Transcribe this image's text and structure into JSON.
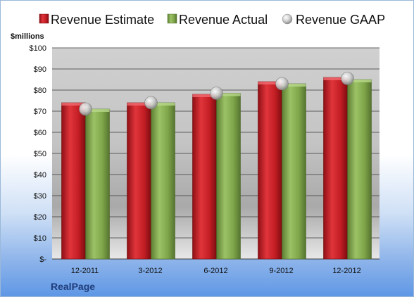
{
  "company": "RealPage",
  "colors": {
    "estimate": "#cc1f26",
    "actual": "#7fa64a",
    "gaap": "#c0c0c0"
  },
  "chart_data": {
    "type": "bar",
    "ylabel": "$millions",
    "ylim": [
      0,
      100
    ],
    "yticks": [
      "$-",
      "$10",
      "$20",
      "$30",
      "$40",
      "$50",
      "$60",
      "$70",
      "$80",
      "$90",
      "$100"
    ],
    "grid": true,
    "legend_position": "top",
    "categories": [
      "12-2011",
      "3-2012",
      "6-2012",
      "9-2012",
      "12-2012"
    ],
    "series": [
      {
        "name": "Revenue Estimate",
        "type": "bar",
        "values": [
          74,
          74,
          78,
          84,
          86
        ]
      },
      {
        "name": "Revenue Actual",
        "type": "bar",
        "values": [
          71,
          74,
          78.5,
          83,
          85
        ]
      },
      {
        "name": "Revenue GAAP",
        "type": "marker",
        "values": [
          71,
          74,
          78.5,
          83,
          85.5
        ]
      }
    ]
  }
}
